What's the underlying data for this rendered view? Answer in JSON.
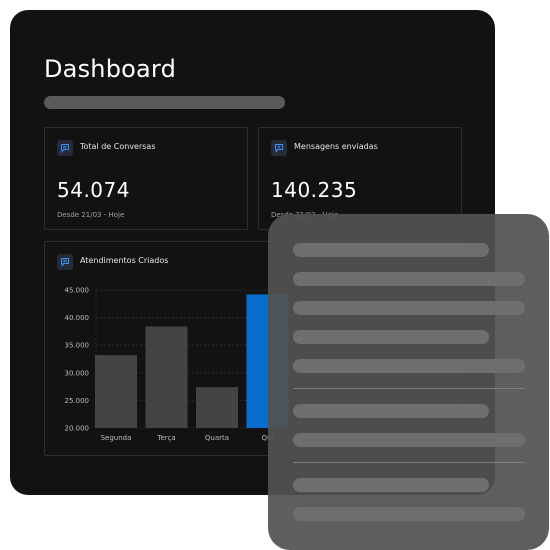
{
  "dashboard": {
    "title": "Dashboard"
  },
  "stats": [
    {
      "label": "Total de Conversas",
      "value": "54.074",
      "subtitle": "Desde 21/03 - Hoje",
      "icon": "chat-bubble-icon"
    },
    {
      "label": "Mensagens enviadas",
      "value": "140.235",
      "subtitle": "Desde 21/03 - Hoje",
      "icon": "message-plus-icon"
    }
  ],
  "chart_panel": {
    "label": "Atendimentos Criados",
    "icon": "chat-list-icon"
  },
  "chart_data": {
    "type": "bar",
    "title": "Atendimentos Criados",
    "xlabel": "",
    "ylabel": "",
    "categories": [
      "Segunda",
      "Terça",
      "Quarta",
      "Quinta"
    ],
    "values": [
      33200,
      38400,
      27400,
      44200
    ],
    "ylim": [
      20000,
      45000
    ],
    "yticks": [
      "45.000",
      "40.000",
      "35.000",
      "30.000",
      "25.000",
      "20.000"
    ],
    "grid": true,
    "bar_color": "#444444",
    "highlight_index": 3,
    "highlight_color": "#0a6dce",
    "category_labels_shown": [
      "Segunda",
      "Terça",
      "Quarta",
      "Qui"
    ]
  },
  "colors": {
    "background": "#ffffff",
    "panel": "#121212",
    "card_border": "#2e2e2e",
    "accent": "#0a6dce",
    "overlay": "#525252"
  }
}
